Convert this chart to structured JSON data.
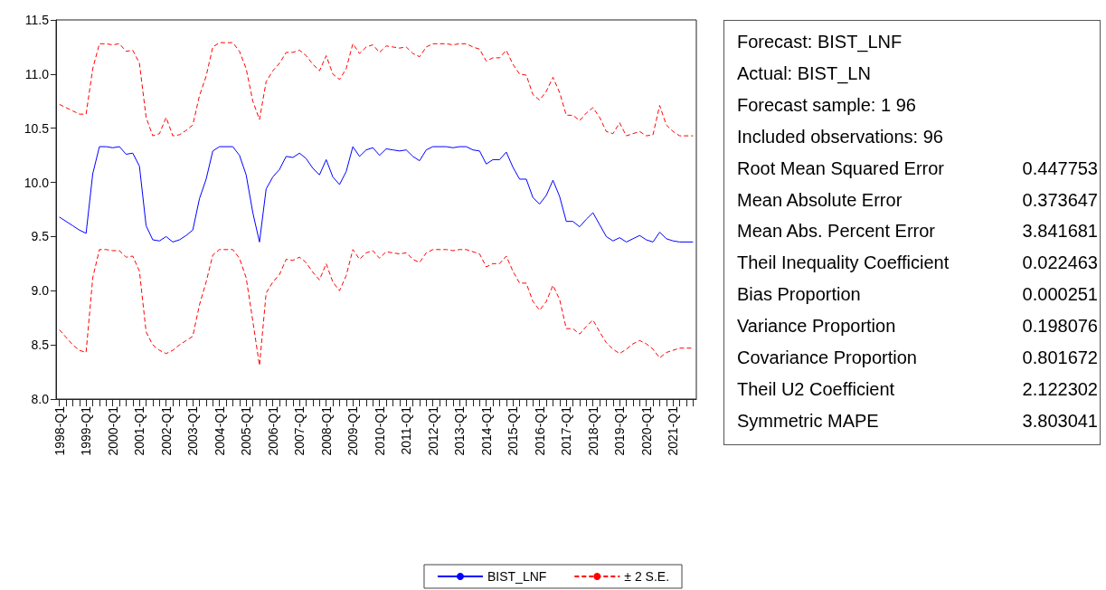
{
  "chart_data": [
    {
      "type": "line",
      "categories": [
        "1998-Q1",
        null,
        null,
        null,
        "1999-Q1",
        null,
        null,
        null,
        "2000-Q1",
        null,
        null,
        null,
        "2001-Q1",
        null,
        null,
        null,
        "2002-Q1",
        null,
        null,
        null,
        "2003-Q1",
        null,
        null,
        null,
        "2004-Q1",
        null,
        null,
        null,
        "2005-Q1",
        null,
        null,
        null,
        "2006-Q1",
        null,
        null,
        null,
        "2007-Q1",
        null,
        null,
        null,
        "2008-Q1",
        null,
        null,
        null,
        "2009-Q1",
        null,
        null,
        null,
        "2010-Q1",
        null,
        null,
        null,
        "2011-Q1",
        null,
        null,
        null,
        "2012-Q1",
        null,
        null,
        null,
        "2013-Q1",
        null,
        null,
        null,
        "2014-Q1",
        null,
        null,
        null,
        "2015-Q1",
        null,
        null,
        null,
        "2016-Q1",
        null,
        null,
        null,
        "2017-Q1",
        null,
        null,
        null,
        "2018-Q1",
        null,
        null,
        null,
        "2019-Q1",
        null,
        null,
        null,
        "2020-Q1",
        null,
        null,
        null,
        "2021-Q1",
        null,
        null,
        null
      ],
      "series": [
        {
          "name": "BIST_LNF",
          "color": "#0000ff",
          "line_style": "solid",
          "values": [
            9.68,
            9.64,
            9.6,
            9.56,
            9.53,
            10.08,
            10.33,
            10.33,
            10.32,
            10.33,
            10.26,
            10.27,
            10.15,
            9.6,
            9.47,
            9.46,
            9.5,
            9.45,
            9.47,
            9.51,
            9.56,
            9.85,
            10.03,
            10.29,
            10.33,
            10.33,
            10.33,
            10.25,
            10.07,
            9.72,
            9.45,
            9.94,
            10.05,
            10.12,
            10.24,
            10.23,
            10.27,
            10.22,
            10.13,
            10.07,
            10.21,
            10.05,
            9.98,
            10.1,
            10.33,
            10.24,
            10.3,
            10.32,
            10.25,
            10.31,
            10.3,
            10.29,
            10.3,
            10.24,
            10.2,
            10.3,
            10.33,
            10.33,
            10.33,
            10.32,
            10.33,
            10.33,
            10.3,
            10.29,
            10.17,
            10.21,
            10.21,
            10.28,
            10.14,
            10.03,
            10.03,
            9.86,
            9.8,
            9.88,
            10.02,
            9.87,
            9.64,
            9.64,
            9.59,
            9.66,
            9.72,
            9.61,
            9.5,
            9.46,
            9.49,
            9.45,
            9.48,
            9.51,
            9.47,
            9.45,
            9.54,
            9.48,
            9.46,
            9.45,
            9.45,
            9.45
          ]
        },
        {
          "name": "± 2 S.E.",
          "color": "#ff0000",
          "line_style": "dashed",
          "values": [
            10.72,
            10.69,
            10.66,
            10.63,
            10.63,
            11.05,
            11.28,
            11.28,
            11.27,
            11.28,
            11.21,
            11.22,
            11.1,
            10.6,
            10.43,
            10.45,
            10.6,
            10.43,
            10.44,
            10.48,
            10.53,
            10.8,
            10.98,
            11.25,
            11.29,
            11.29,
            11.29,
            11.21,
            11.05,
            10.75,
            10.58,
            10.93,
            11.03,
            11.1,
            11.2,
            11.2,
            11.22,
            11.17,
            11.09,
            11.03,
            11.17,
            11.0,
            10.95,
            11.05,
            11.28,
            11.19,
            11.25,
            11.27,
            11.2,
            11.26,
            11.25,
            11.24,
            11.25,
            11.19,
            11.16,
            11.25,
            11.28,
            11.28,
            11.28,
            11.27,
            11.28,
            11.28,
            11.25,
            11.23,
            11.12,
            11.15,
            11.15,
            11.22,
            11.09,
            11.0,
            10.99,
            10.81,
            10.76,
            10.84,
            10.97,
            10.83,
            10.62,
            10.62,
            10.57,
            10.64,
            10.69,
            10.6,
            10.47,
            10.45,
            10.55,
            10.43,
            10.45,
            10.47,
            10.43,
            10.44,
            10.71,
            10.53,
            10.47,
            10.43,
            10.43,
            10.43
          ]
        },
        {
          "color": "#ff0000",
          "line_style": "dashed",
          "values": [
            8.64,
            8.57,
            8.5,
            8.45,
            8.43,
            9.12,
            9.38,
            9.38,
            9.37,
            9.37,
            9.31,
            9.32,
            9.18,
            8.62,
            8.5,
            8.45,
            8.42,
            8.45,
            8.5,
            8.54,
            8.58,
            8.87,
            9.08,
            9.33,
            9.38,
            9.38,
            9.38,
            9.3,
            9.12,
            8.72,
            8.31,
            8.98,
            9.08,
            9.15,
            9.29,
            9.28,
            9.31,
            9.26,
            9.17,
            9.1,
            9.25,
            9.08,
            9.0,
            9.14,
            9.38,
            9.29,
            9.35,
            9.37,
            9.3,
            9.36,
            9.35,
            9.34,
            9.35,
            9.29,
            9.26,
            9.35,
            9.38,
            9.38,
            9.38,
            9.37,
            9.38,
            9.38,
            9.36,
            9.34,
            9.22,
            9.25,
            9.25,
            9.32,
            9.18,
            9.07,
            9.07,
            8.9,
            8.82,
            8.9,
            9.05,
            8.92,
            8.65,
            8.65,
            8.6,
            8.67,
            8.73,
            8.62,
            8.52,
            8.46,
            8.42,
            8.46,
            8.51,
            8.54,
            8.51,
            8.46,
            8.38,
            8.43,
            8.45,
            8.47,
            8.47,
            8.47
          ]
        }
      ],
      "ylim": [
        8.0,
        11.5
      ],
      "yticks": [
        {
          "value": 8.0,
          "label": "8.0"
        },
        {
          "value": 8.5,
          "label": "8.5"
        },
        {
          "value": 9.0,
          "label": "9.0"
        },
        {
          "value": 9.5,
          "label": "9.5"
        },
        {
          "value": 10.0,
          "label": "10.0"
        },
        {
          "value": 10.5,
          "label": "10.5"
        },
        {
          "value": 11.0,
          "label": "11.0"
        },
        {
          "value": 11.5,
          "label": "11.5"
        }
      ],
      "grid": false,
      "legend": "bottom",
      "marker": "none"
    },
    {
      "type": "other",
      "annotations": [
        "Forecast: BIST_LNF",
        "Actual: BIST_LN",
        "Forecast sample: 1 96",
        "Included observations: 96"
      ],
      "categories": [
        "Root Mean Squared Error",
        "Mean Absolute Error",
        "Mean Abs. Percent Error",
        "Theil Inequality Coefficient",
        "Bias Proportion",
        "Variance Proportion",
        "Covariance Proportion",
        "Theil U2 Coefficient",
        "Symmetric MAPE"
      ],
      "value_labels": [
        "0.447753",
        "0.373647",
        "3.841681",
        "0.022463",
        "0.000251",
        "0.198076",
        "0.801672",
        "2.122302",
        "3.803041"
      ]
    }
  ]
}
